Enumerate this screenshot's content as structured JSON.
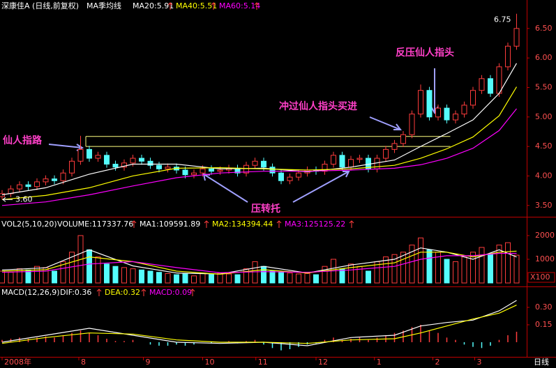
{
  "chart_data": [
    {
      "type": "candlestick",
      "title": "深康佳A (日线,前复权)",
      "subtitle": "MA季均线",
      "x": [
        0,
        1,
        2,
        3,
        4,
        5,
        6,
        7,
        8,
        9,
        10,
        11,
        12,
        13,
        14,
        15,
        16,
        17,
        18,
        19,
        20,
        21,
        22,
        23,
        24,
        25,
        26,
        27,
        28,
        29,
        30,
        31,
        32,
        33,
        34,
        35,
        36,
        37,
        38,
        39,
        40,
        41,
        42,
        43,
        44,
        45,
        46,
        47,
        48,
        49,
        50,
        51,
        52,
        53,
        54,
        55,
        56,
        57,
        58,
        59
      ],
      "open": [
        3.65,
        3.7,
        3.78,
        3.85,
        3.82,
        3.9,
        3.95,
        3.92,
        4.05,
        4.25,
        4.45,
        4.3,
        4.35,
        4.2,
        4.15,
        4.22,
        4.3,
        4.25,
        4.18,
        4.12,
        4.15,
        4.1,
        4.02,
        4.05,
        4.12,
        4.08,
        4.1,
        4.13,
        4.05,
        4.18,
        4.25,
        4.15,
        4.05,
        3.92,
        3.98,
        4.05,
        4.1,
        4.08,
        4.2,
        4.35,
        4.15,
        4.28,
        4.3,
        4.12,
        4.3,
        4.45,
        4.55,
        4.7,
        5.05,
        5.45,
        5.0,
        5.15,
        4.95,
        5.05,
        5.2,
        5.45,
        5.65,
        5.4,
        5.85,
        6.2
      ],
      "high": [
        3.76,
        3.84,
        3.91,
        3.91,
        3.96,
        4.01,
        4.01,
        4.11,
        4.31,
        4.68,
        4.51,
        4.41,
        4.41,
        4.26,
        4.28,
        4.36,
        4.36,
        4.31,
        4.24,
        4.21,
        4.21,
        4.16,
        4.11,
        4.18,
        4.18,
        4.16,
        4.19,
        4.19,
        4.24,
        4.31,
        4.31,
        4.21,
        4.11,
        4.04,
        4.11,
        4.16,
        4.16,
        4.26,
        4.41,
        4.41,
        4.34,
        4.36,
        4.36,
        4.36,
        4.51,
        4.61,
        4.76,
        5.11,
        5.55,
        5.51,
        5.21,
        5.21,
        5.11,
        5.26,
        5.51,
        5.71,
        5.71,
        5.91,
        6.26,
        6.75
      ],
      "low": [
        3.6,
        3.64,
        3.72,
        3.76,
        3.76,
        3.84,
        3.86,
        3.86,
        3.99,
        4.19,
        4.24,
        4.24,
        4.14,
        4.09,
        4.09,
        4.16,
        4.19,
        4.12,
        4.06,
        4.06,
        4.04,
        3.96,
        3.96,
        3.99,
        4.02,
        4.02,
        4.04,
        3.99,
        3.99,
        4.12,
        4.09,
        3.99,
        3.86,
        3.86,
        3.92,
        3.99,
        4.02,
        4.02,
        4.14,
        4.09,
        4.09,
        4.22,
        4.06,
        4.06,
        4.24,
        4.39,
        4.49,
        4.64,
        4.99,
        4.94,
        4.94,
        4.89,
        4.89,
        4.99,
        5.14,
        5.39,
        5.34,
        5.34,
        5.79,
        6.14
      ],
      "close": [
        3.7,
        3.78,
        3.85,
        3.82,
        3.9,
        3.95,
        3.92,
        4.05,
        4.25,
        4.45,
        4.3,
        4.35,
        4.2,
        4.15,
        4.22,
        4.3,
        4.25,
        4.18,
        4.12,
        4.15,
        4.1,
        4.02,
        4.05,
        4.12,
        4.08,
        4.1,
        4.13,
        4.05,
        4.18,
        4.25,
        4.15,
        4.05,
        3.92,
        3.98,
        4.05,
        4.1,
        4.08,
        4.2,
        4.35,
        4.15,
        4.28,
        4.3,
        4.12,
        4.3,
        4.45,
        4.55,
        4.7,
        5.05,
        5.45,
        5.0,
        5.15,
        4.95,
        5.05,
        5.2,
        5.45,
        5.65,
        5.4,
        5.85,
        6.2,
        6.5
      ],
      "up_color": "#ff3c3c",
      "down_color": "#54fcfc",
      "series": [
        {
          "name": "MA20:5.91",
          "color": "#ffffff",
          "x": [
            0,
            5,
            10,
            15,
            20,
            25,
            30,
            35,
            40,
            45,
            48,
            51,
            54,
            57,
            59
          ],
          "values": [
            3.68,
            3.8,
            4.03,
            4.2,
            4.2,
            4.12,
            4.13,
            4.07,
            4.15,
            4.27,
            4.5,
            4.72,
            4.95,
            5.4,
            5.91
          ]
        },
        {
          "name": "MA40:5.51",
          "color": "#ffff00",
          "x": [
            0,
            5,
            10,
            15,
            20,
            25,
            30,
            35,
            40,
            45,
            48,
            51,
            54,
            57,
            59
          ],
          "values": [
            3.6,
            3.67,
            3.8,
            4.0,
            4.13,
            4.14,
            4.12,
            4.1,
            4.12,
            4.18,
            4.3,
            4.46,
            4.66,
            5.02,
            5.51
          ]
        },
        {
          "name": "MA60:5.14",
          "color": "#ff00ff",
          "x": [
            0,
            5,
            10,
            15,
            20,
            25,
            30,
            35,
            40,
            45,
            48,
            51,
            54,
            57,
            59
          ],
          "values": [
            3.5,
            3.56,
            3.68,
            3.83,
            3.97,
            4.05,
            4.08,
            4.08,
            4.1,
            4.13,
            4.19,
            4.3,
            4.47,
            4.77,
            5.14
          ]
        }
      ],
      "xlim": [
        -0.24,
        60.16
      ],
      "ylim": [
        3.32,
        6.77
      ],
      "yticks": [
        {
          "value": 3.5,
          "label": "3.50"
        },
        {
          "value": 4,
          "label": "4.00"
        },
        {
          "value": 4.5,
          "label": "4.50"
        },
        {
          "value": 5,
          "label": "5.00"
        },
        {
          "value": 5.5,
          "label": "5.50"
        },
        {
          "value": 6,
          "label": "6.00"
        },
        {
          "value": 6.5,
          "label": "6.50"
        }
      ],
      "high_label": "6.75",
      "low_label": "3.60",
      "levels": [
        4.67,
        4.5
      ],
      "level_color": "#ffff80",
      "annotations": [
        "仙人指路",
        "冲过仙人指头买进",
        "反压仙人指头",
        "压转托"
      ]
    },
    {
      "type": "volume",
      "title": "VOL2(5,10,20)",
      "bar_name": "VOLUME:117337.76",
      "values": [
        500,
        450,
        600,
        550,
        700,
        650,
        500,
        900,
        1300,
        2000,
        1400,
        1100,
        800,
        700,
        650,
        600,
        550,
        500,
        450,
        400,
        350,
        380,
        300,
        400,
        350,
        420,
        380,
        350,
        600,
        900,
        700,
        500,
        450,
        420,
        380,
        400,
        350,
        700,
        1000,
        600,
        800,
        700,
        500,
        900,
        1100,
        1200,
        1300,
        1600,
        1900,
        1400,
        1300,
        1000,
        900,
        1100,
        1300,
        1500,
        1200,
        1600,
        1700,
        1173
      ],
      "series": [
        {
          "name": "MA1:109591.89",
          "color": "#ffffff",
          "x": [
            0,
            5,
            10,
            15,
            20,
            25,
            30,
            35,
            40,
            45,
            48,
            51,
            54,
            57,
            59
          ],
          "values": [
            550,
            640,
            1400,
            720,
            420,
            380,
            700,
            420,
            760,
            1000,
            1480,
            1300,
            1000,
            1400,
            1096
          ]
        },
        {
          "name": "MA2:134394.44",
          "color": "#ffff00",
          "x": [
            0,
            5,
            10,
            15,
            20,
            25,
            30,
            35,
            40,
            45,
            48,
            51,
            54,
            57,
            59
          ],
          "values": [
            500,
            560,
            1100,
            900,
            500,
            370,
            560,
            420,
            650,
            850,
            1300,
            1300,
            1100,
            1300,
            1344
          ]
        },
        {
          "name": "MA3:125125.22",
          "color": "#ff00ff",
          "x": [
            0,
            5,
            10,
            15,
            20,
            25,
            30,
            35,
            40,
            45,
            48,
            51,
            54,
            57,
            59
          ],
          "values": [
            450,
            500,
            800,
            900,
            650,
            430,
            480,
            450,
            550,
            700,
            1000,
            1150,
            1150,
            1250,
            1251
          ]
        }
      ],
      "xlim": [
        -0.24,
        60.16
      ],
      "ylim": [
        0,
        2235
      ],
      "yticks": [
        1000,
        2000
      ],
      "unit_label": "X100"
    },
    {
      "type": "macd",
      "title": "MACD(12,26,9)",
      "bar_name": "MACD:0.09",
      "bar_color": "#ff00ff",
      "values": [
        0.02,
        0.03,
        0.04,
        0.03,
        0.04,
        0.05,
        0.04,
        0.06,
        0.08,
        0.1,
        0.08,
        0.06,
        0.03,
        0.01,
        0.01,
        0.02,
        0.0,
        -0.02,
        -0.03,
        -0.03,
        -0.02,
        -0.03,
        -0.02,
        0.0,
        -0.01,
        0.0,
        0.01,
        -0.01,
        0.01,
        0.02,
        -0.02,
        -0.05,
        -0.07,
        -0.06,
        -0.04,
        -0.02,
        -0.01,
        0.02,
        0.04,
        0.02,
        0.03,
        0.04,
        0.02,
        0.04,
        0.06,
        0.08,
        0.1,
        0.13,
        0.15,
        0.1,
        0.08,
        0.04,
        0.02,
        -0.02,
        -0.04,
        -0.05,
        -0.03,
        0.02,
        0.06,
        0.09
      ],
      "series": [
        {
          "name": "DIF:0.36",
          "color": "#ffffff",
          "x": [
            0,
            5,
            10,
            15,
            20,
            25,
            30,
            35,
            40,
            45,
            48,
            51,
            54,
            57,
            59
          ],
          "values": [
            0.0,
            0.06,
            0.12,
            0.06,
            0.0,
            -0.01,
            0.0,
            -0.03,
            0.04,
            0.06,
            0.14,
            0.17,
            0.19,
            0.27,
            0.36
          ]
        },
        {
          "name": "DEA:0.32",
          "color": "#ffff00",
          "x": [
            0,
            5,
            10,
            15,
            20,
            25,
            30,
            35,
            40,
            45,
            48,
            51,
            54,
            57,
            59
          ],
          "values": [
            -0.01,
            0.04,
            0.08,
            0.07,
            0.02,
            0.0,
            0.0,
            -0.01,
            0.02,
            0.03,
            0.08,
            0.14,
            0.2,
            0.25,
            0.32
          ]
        }
      ],
      "xlim": [
        -0.24,
        60.16
      ],
      "ylim": [
        -0.126,
        0.378
      ],
      "yticks": [
        {
          "value": 0.15,
          "label": "0.15"
        },
        {
          "value": 0.3,
          "label": "0.30"
        }
      ],
      "xticks": [
        {
          "value": 0,
          "label": "2008年"
        },
        {
          "value": 8.8,
          "label": "8"
        },
        {
          "value": 16.2,
          "label": "9"
        },
        {
          "value": 23,
          "label": "10"
        },
        {
          "value": 29.1,
          "label": "11"
        },
        {
          "value": 36,
          "label": "12"
        },
        {
          "value": 42.7,
          "label": "1"
        },
        {
          "value": 49.4,
          "label": "2"
        },
        {
          "value": 54.2,
          "label": "3"
        }
      ],
      "period_label": "日线"
    }
  ]
}
